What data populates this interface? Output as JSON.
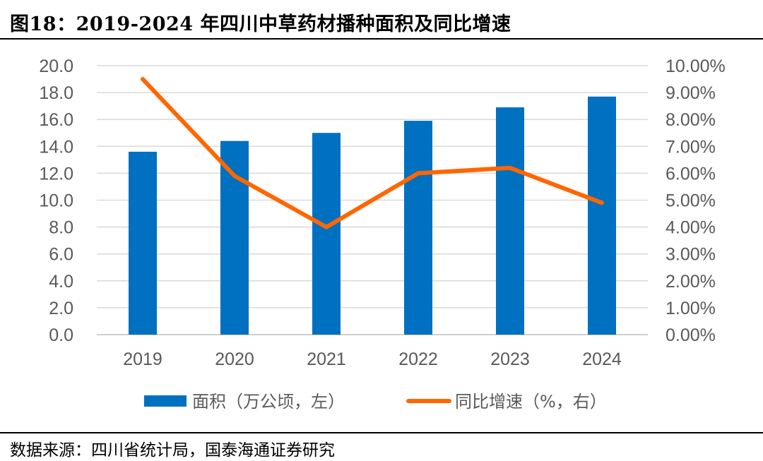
{
  "title": "图18：2019-2024 年四川中草药材播种面积及同比增速",
  "source": "数据来源：四川省统计局，国泰海通证券研究",
  "chart_data": {
    "type": "bar+line",
    "categories": [
      "2019",
      "2020",
      "2021",
      "2022",
      "2023",
      "2024"
    ],
    "series": [
      {
        "name": "面积（万公顷，左）",
        "type": "bar",
        "axis": "left",
        "color": "#0070C0",
        "values": [
          13.6,
          14.4,
          15.0,
          15.9,
          16.9,
          17.7
        ]
      },
      {
        "name": "同比增速（%，右）",
        "type": "line",
        "axis": "right",
        "color": "#FF6600",
        "values": [
          9.5,
          5.9,
          4.0,
          6.0,
          6.2,
          4.9
        ]
      }
    ],
    "left_axis": {
      "ylim": [
        0,
        20
      ],
      "ticks": [
        "0.0",
        "2.0",
        "4.0",
        "6.0",
        "8.0",
        "10.0",
        "12.0",
        "14.0",
        "16.0",
        "18.0",
        "20.0"
      ]
    },
    "right_axis": {
      "ylim": [
        0,
        10
      ],
      "ticks": [
        "0.00%",
        "1.00%",
        "2.00%",
        "3.00%",
        "4.00%",
        "5.00%",
        "6.00%",
        "7.00%",
        "8.00%",
        "9.00%",
        "10.00%"
      ]
    },
    "grid": true,
    "legend": "bottom"
  }
}
